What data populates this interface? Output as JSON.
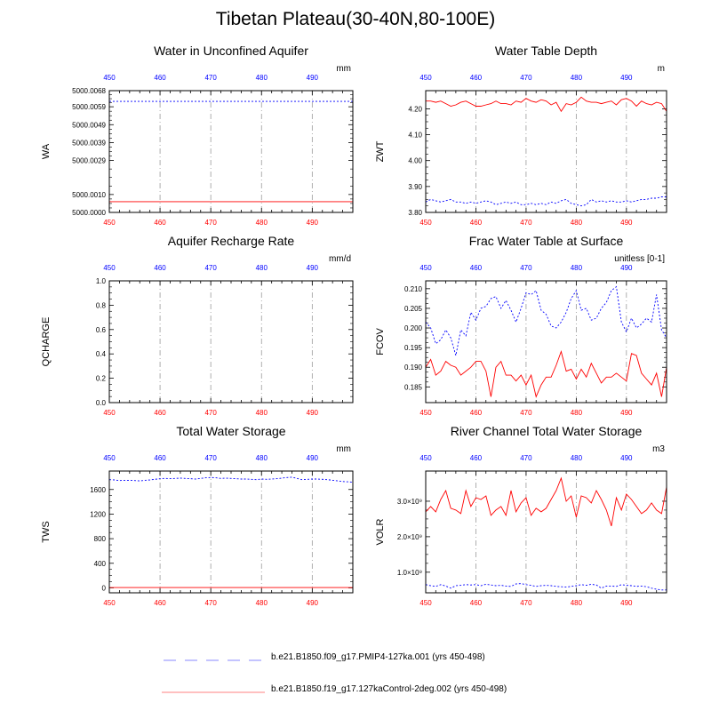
{
  "title": "Tibetan Plateau(30-40N,80-100E)",
  "colors": {
    "ctrl": "#ff0000",
    "pmip": "#0000ff",
    "top_tick": "#0000ff",
    "bottom_tick": "#ff0000",
    "grid": "#9a9a9a"
  },
  "legend": [
    {
      "name": "b.e21.B1850.f09_g17.PMIP4-127ka.001 (yrs 450-498)",
      "color": "#0000ff",
      "style": "dashed-light"
    },
    {
      "name": "b.e21.B1850.f19_g17.127kaControl-2deg.002 (yrs 450-498)",
      "color": "#ff0000",
      "style": "solid"
    }
  ],
  "chart_data": [
    {
      "type": "line",
      "title": "Water in Unconfined Aquifer",
      "ylabel": "WA",
      "units": "mm",
      "xlim": [
        450,
        498
      ],
      "xticks": [
        450,
        460,
        470,
        480,
        490
      ],
      "ylim": [
        5000.0,
        5000.0068
      ],
      "yticks": [
        5000.0,
        5000.001,
        5000.0029,
        5000.0039,
        5000.0049,
        5000.0059,
        5000.0068
      ],
      "ytick_labels": [
        "5000.0000",
        "5000.0010",
        "5000.0029",
        "5000.0039",
        "5000.0049",
        "5000.0059",
        "5000.0068"
      ],
      "series": [
        {
          "name": "pmip",
          "values": [
            5000.0062
          ]
        },
        {
          "name": "ctrl",
          "values": [
            5000.0006
          ]
        }
      ]
    },
    {
      "type": "line",
      "title": "Water Table Depth",
      "ylabel": "ZWT",
      "units": "m",
      "xlim": [
        450,
        498
      ],
      "xticks": [
        450,
        460,
        470,
        480,
        490
      ],
      "ylim": [
        3.8,
        4.27
      ],
      "yticks": [
        3.8,
        3.9,
        4.0,
        4.1,
        4.2
      ],
      "ytick_labels": [
        "3.80",
        "3.90",
        "4.00",
        "4.10",
        "4.20"
      ],
      "series": [
        {
          "name": "pmip",
          "values": [
            3.84,
            3.85,
            3.845,
            3.84,
            3.845,
            3.85,
            3.84,
            3.84,
            3.835,
            3.84,
            3.835,
            3.84,
            3.845,
            3.84,
            3.83,
            3.835,
            3.84,
            3.835,
            3.84,
            3.83,
            3.83,
            3.835,
            3.83,
            3.835,
            3.83,
            3.84,
            3.835,
            3.845,
            3.85,
            3.835,
            3.83,
            3.825,
            3.83,
            3.85,
            3.84,
            3.845,
            3.84,
            3.845,
            3.84,
            3.84,
            3.845,
            3.84,
            3.845,
            3.85,
            3.85,
            3.855,
            3.855,
            3.86,
            3.86
          ]
        },
        {
          "name": "ctrl",
          "values": [
            4.23,
            4.23,
            4.225,
            4.23,
            4.22,
            4.21,
            4.215,
            4.225,
            4.23,
            4.22,
            4.21,
            4.21,
            4.215,
            4.22,
            4.23,
            4.22,
            4.22,
            4.215,
            4.23,
            4.225,
            4.24,
            4.23,
            4.225,
            4.235,
            4.23,
            4.215,
            4.225,
            4.19,
            4.22,
            4.215,
            4.225,
            4.245,
            4.23,
            4.225,
            4.225,
            4.22,
            4.225,
            4.23,
            4.215,
            4.235,
            4.24,
            4.23,
            4.21,
            4.23,
            4.22,
            4.215,
            4.225,
            4.22,
            4.19
          ]
        }
      ]
    },
    {
      "type": "line",
      "title": "Aquifer Recharge Rate",
      "ylabel": "QCHARGE",
      "units": "mm/d",
      "xlim": [
        450,
        498
      ],
      "xticks": [
        450,
        460,
        470,
        480,
        490
      ],
      "ylim": [
        0.0,
        1.0
      ],
      "yticks": [
        0.0,
        0.2,
        0.4,
        0.6,
        0.8,
        1.0
      ],
      "ytick_labels": [
        "0.0",
        "0.2",
        "0.4",
        "0.6",
        "0.8",
        "1.0"
      ],
      "series": [
        {
          "name": "ctrl",
          "values": [
            0.0
          ]
        },
        {
          "name": "pmip",
          "values": [
            0.0
          ]
        }
      ]
    },
    {
      "type": "line",
      "title": "Frac Water Table at Surface",
      "ylabel": "FCOV",
      "units": "unitless [0-1]",
      "xlim": [
        450,
        498
      ],
      "xticks": [
        450,
        460,
        470,
        480,
        490
      ],
      "ylim": [
        0.181,
        0.212
      ],
      "yticks": [
        0.185,
        0.19,
        0.195,
        0.2,
        0.205,
        0.21
      ],
      "ytick_labels": [
        "0.185",
        "0.190",
        "0.195",
        "0.200",
        "0.205",
        "0.210"
      ],
      "series": [
        {
          "name": "pmip",
          "values": [
            0.2015,
            0.2,
            0.196,
            0.197,
            0.1995,
            0.1975,
            0.193,
            0.1995,
            0.198,
            0.204,
            0.202,
            0.205,
            0.2055,
            0.2075,
            0.208,
            0.205,
            0.207,
            0.2045,
            0.2015,
            0.205,
            0.209,
            0.2085,
            0.2095,
            0.2045,
            0.2035,
            0.2005,
            0.2,
            0.2015,
            0.204,
            0.2075,
            0.2095,
            0.2045,
            0.205,
            0.202,
            0.2025,
            0.205,
            0.2065,
            0.2095,
            0.2105,
            0.2015,
            0.199,
            0.2025,
            0.2,
            0.201,
            0.2025,
            0.2015,
            0.2085,
            0.1995,
            0.1975
          ]
        },
        {
          "name": "ctrl",
          "values": [
            0.19,
            0.192,
            0.188,
            0.189,
            0.1915,
            0.1905,
            0.19,
            0.188,
            0.189,
            0.19,
            0.1915,
            0.1915,
            0.189,
            0.1825,
            0.19,
            0.1915,
            0.188,
            0.188,
            0.1865,
            0.188,
            0.1855,
            0.188,
            0.1825,
            0.1855,
            0.1875,
            0.1875,
            0.1905,
            0.194,
            0.189,
            0.1895,
            0.187,
            0.1895,
            0.1875,
            0.191,
            0.1885,
            0.186,
            0.1875,
            0.1875,
            0.1885,
            0.1875,
            0.1865,
            0.1935,
            0.193,
            0.1885,
            0.187,
            0.1855,
            0.1885,
            0.1825,
            0.19
          ]
        }
      ]
    },
    {
      "type": "line",
      "title": "Total Water Storage",
      "ylabel": "TWS",
      "units": "mm",
      "xlim": [
        450,
        498
      ],
      "xticks": [
        450,
        460,
        470,
        480,
        490
      ],
      "ylim": [
        -80,
        1900
      ],
      "yticks": [
        0,
        400,
        800,
        1200,
        1600
      ],
      "ytick_labels": [
        "0",
        "400",
        "800",
        "1200",
        "1600"
      ],
      "series": [
        {
          "name": "pmip",
          "values": [
            1760,
            1755,
            1745,
            1750,
            1750,
            1745,
            1740,
            1750,
            1755,
            1765,
            1775,
            1780,
            1775,
            1780,
            1785,
            1780,
            1775,
            1770,
            1780,
            1790,
            1795,
            1790,
            1780,
            1785,
            1780,
            1775,
            1770,
            1770,
            1765,
            1760,
            1770,
            1765,
            1770,
            1775,
            1785,
            1795,
            1800,
            1780,
            1760,
            1765,
            1770,
            1770,
            1765,
            1760,
            1750,
            1740,
            1730,
            1725,
            1720
          ]
        },
        {
          "name": "ctrl",
          "values": [
            5
          ]
        }
      ]
    },
    {
      "type": "line",
      "title": "River Channel Total Water Storage",
      "ylabel": "VOLR",
      "units": "m3",
      "xlim": [
        450,
        498
      ],
      "xticks": [
        450,
        460,
        470,
        480,
        490
      ],
      "ylim": [
        420000000.0,
        3850000000.0
      ],
      "yticks": [
        1000000000.0,
        2000000000.0,
        3000000000.0
      ],
      "ytick_labels": [
        "1.0×10⁹",
        "2.0×10⁹",
        "3.0×10⁹"
      ],
      "series": [
        {
          "name": "pmip",
          "values": [
            650000000.0,
            620000000.0,
            600000000.0,
            650000000.0,
            610000000.0,
            550000000.0,
            620000000.0,
            630000000.0,
            650000000.0,
            640000000.0,
            650000000.0,
            620000000.0,
            660000000.0,
            640000000.0,
            620000000.0,
            630000000.0,
            610000000.0,
            600000000.0,
            670000000.0,
            680000000.0,
            650000000.0,
            630000000.0,
            600000000.0,
            620000000.0,
            630000000.0,
            620000000.0,
            600000000.0,
            590000000.0,
            580000000.0,
            600000000.0,
            620000000.0,
            650000000.0,
            630000000.0,
            660000000.0,
            640000000.0,
            550000000.0,
            610000000.0,
            610000000.0,
            600000000.0,
            650000000.0,
            630000000.0,
            620000000.0,
            600000000.0,
            610000000.0,
            590000000.0,
            550000000.0,
            520000000.0,
            500000000.0,
            500000000.0
          ]
        },
        {
          "name": "ctrl",
          "values": [
            2700000000.0,
            2850000000.0,
            2700000000.0,
            3050000000.0,
            3300000000.0,
            2800000000.0,
            2750000000.0,
            2650000000.0,
            3300000000.0,
            2850000000.0,
            3100000000.0,
            3050000000.0,
            3150000000.0,
            2600000000.0,
            2750000000.0,
            2850000000.0,
            2600000000.0,
            3300000000.0,
            2700000000.0,
            2950000000.0,
            3100000000.0,
            2600000000.0,
            2800000000.0,
            2700000000.0,
            2800000000.0,
            3050000000.0,
            3300000000.0,
            3650000000.0,
            3000000000.0,
            3150000000.0,
            2550000000.0,
            3150000000.0,
            3100000000.0,
            2950000000.0,
            3300000000.0,
            3050000000.0,
            2750000000.0,
            2300000000.0,
            3100000000.0,
            2750000000.0,
            3200000000.0,
            3050000000.0,
            2850000000.0,
            2650000000.0,
            2750000000.0,
            2950000000.0,
            2750000000.0,
            2650000000.0,
            3400000000.0
          ]
        }
      ]
    }
  ]
}
